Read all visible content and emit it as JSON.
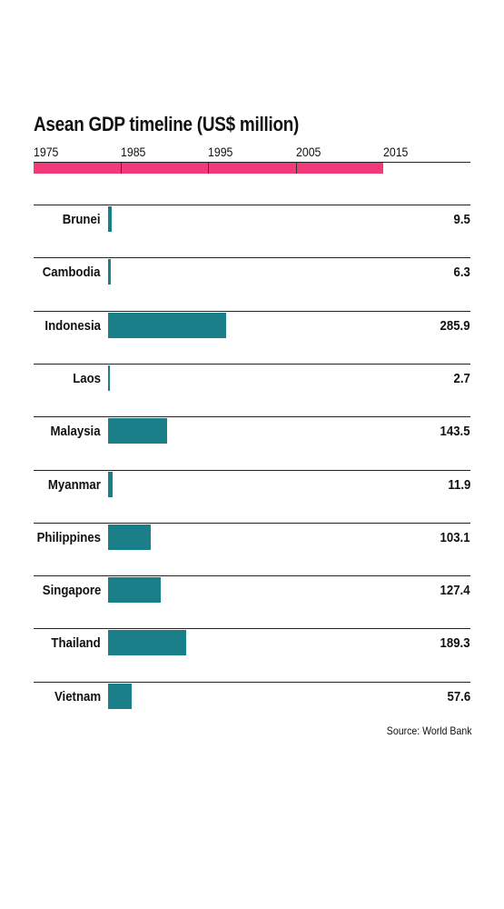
{
  "title": "Asean GDP timeline (US$ million)",
  "timeline": {
    "years": [
      "1975",
      "1985",
      "1995",
      "2005",
      "2015"
    ],
    "start_year": 1975,
    "end_year": 2015,
    "axis_end_year": 2025,
    "bar_color": "#f23a7a"
  },
  "source": "Source: World Bank",
  "chart_data": {
    "type": "bar",
    "title": "Asean GDP timeline (US$ million)",
    "orientation": "horizontal",
    "categories": [
      "Brunei",
      "Cambodia",
      "Indonesia",
      "Laos",
      "Malaysia",
      "Myanmar",
      "Philippines",
      "Singapore",
      "Thailand",
      "Vietnam"
    ],
    "values": [
      9.5,
      6.3,
      285.9,
      2.7,
      143.5,
      11.9,
      103.1,
      127.4,
      189.3,
      57.6
    ],
    "value_labels": [
      "9.5",
      "6.3",
      "285.9",
      "2.7",
      "143.5",
      "11.9",
      "103.1",
      "127.4",
      "189.3",
      "57.6"
    ],
    "xlim": [
      0,
      880
    ],
    "bar_color": "#1a7f88",
    "grid": false,
    "xlabel": "",
    "ylabel": ""
  }
}
